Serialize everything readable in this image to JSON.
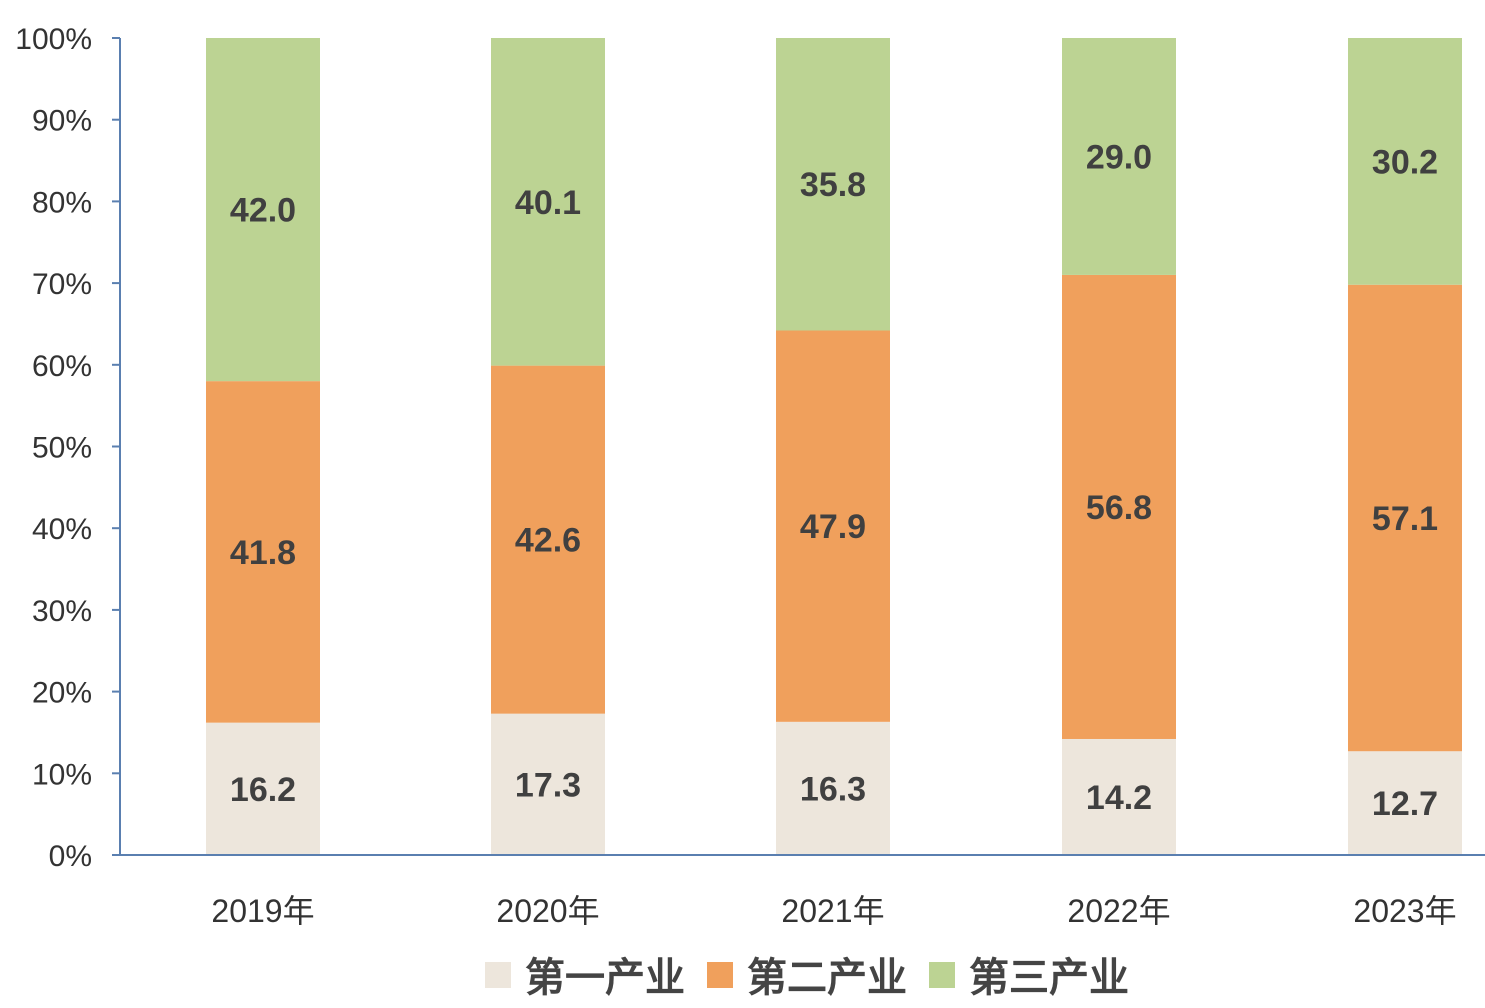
{
  "chart_data": {
    "type": "bar",
    "stacked": true,
    "percent_stacked": true,
    "categories": [
      "2019年",
      "2020年",
      "2021年",
      "2022年",
      "2023年"
    ],
    "series": [
      {
        "name": "第一产业",
        "color": "#ede6dc",
        "values": [
          16.2,
          17.3,
          16.3,
          14.2,
          12.7
        ]
      },
      {
        "name": "第二产业",
        "color": "#f0a05c",
        "values": [
          41.8,
          42.6,
          47.9,
          56.8,
          57.1
        ]
      },
      {
        "name": "第三产业",
        "color": "#bcd393",
        "values": [
          42.0,
          40.1,
          35.8,
          29.0,
          30.2
        ]
      }
    ],
    "ylim": [
      0,
      100
    ],
    "yticks": [
      "0%",
      "10%",
      "20%",
      "30%",
      "40%",
      "50%",
      "60%",
      "70%",
      "80%",
      "90%",
      "100%"
    ],
    "data_labels": true,
    "grid": false,
    "legend_position": "bottom"
  }
}
